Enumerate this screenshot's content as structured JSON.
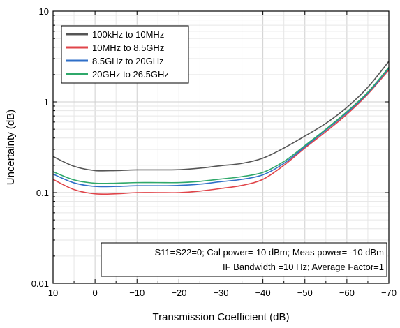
{
  "chart_data": {
    "type": "line",
    "xlabel": "Transmission Coefficient (dB)",
    "ylabel": "Uncertainty (dB)",
    "xlim": [
      10,
      -70
    ],
    "ylim": [
      0.01,
      10
    ],
    "yscale": "log",
    "grid": true,
    "x_ticks": [
      10,
      0,
      -10,
      -20,
      -30,
      -40,
      -50,
      -60,
      -70
    ],
    "x_tick_labels": [
      "10",
      "0",
      "−10",
      "−20",
      "−30",
      "−40",
      "−50",
      "−60",
      "−70"
    ],
    "y_ticks": [
      0.01,
      0.1,
      1,
      10
    ],
    "y_tick_labels": [
      "0.01",
      "0.1",
      "1",
      "10"
    ],
    "legend_position": "top-left",
    "annotation": [
      "S11=S22=0; Cal power=-10 dBm; Meas power= -10 dBm",
      "IF Bandwidth =10 Hz; Average Factor=1"
    ],
    "x": [
      10,
      5,
      0,
      -5,
      -10,
      -15,
      -20,
      -25,
      -30,
      -35,
      -40,
      -45,
      -50,
      -55,
      -60,
      -65,
      -70
    ],
    "series": [
      {
        "name": "100kHz to 10MHz",
        "color": "#555555",
        "values": [
          0.25,
          0.195,
          0.175,
          0.175,
          0.178,
          0.178,
          0.179,
          0.186,
          0.198,
          0.21,
          0.24,
          0.31,
          0.42,
          0.58,
          0.87,
          1.45,
          2.8
        ]
      },
      {
        "name": "10MHz to 8.5GHz",
        "color": "#e0454a",
        "values": [
          0.14,
          0.108,
          0.097,
          0.097,
          0.1,
          0.1,
          0.1,
          0.104,
          0.111,
          0.12,
          0.14,
          0.2,
          0.31,
          0.47,
          0.73,
          1.22,
          2.25
        ]
      },
      {
        "name": "8.5GHz to 20GHz",
        "color": "#2f6fc8",
        "values": [
          0.16,
          0.128,
          0.117,
          0.117,
          0.119,
          0.119,
          0.12,
          0.124,
          0.132,
          0.14,
          0.157,
          0.21,
          0.32,
          0.49,
          0.76,
          1.25,
          2.35
        ]
      },
      {
        "name": "20GHz to 26.5GHz",
        "color": "#2fa86a",
        "values": [
          0.17,
          0.138,
          0.127,
          0.127,
          0.129,
          0.129,
          0.129,
          0.133,
          0.141,
          0.15,
          0.167,
          0.22,
          0.33,
          0.5,
          0.78,
          1.28,
          2.4
        ]
      }
    ]
  }
}
